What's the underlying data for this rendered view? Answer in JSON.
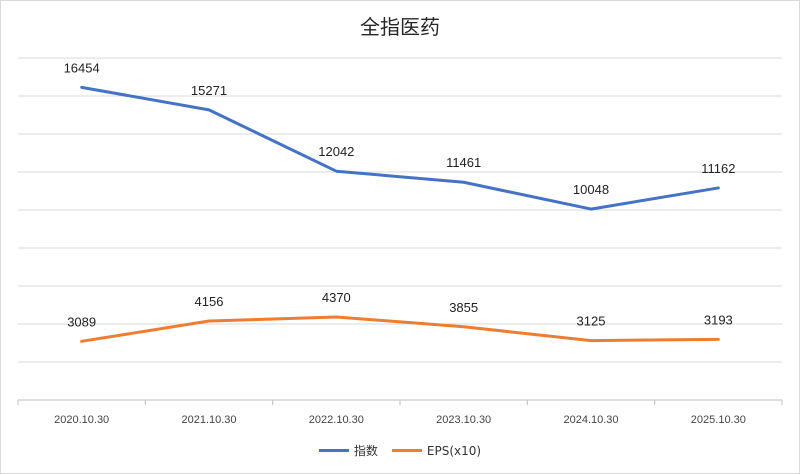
{
  "chart_data": {
    "type": "line",
    "title": "全指医药",
    "categories": [
      "2020.10.30",
      "2021.10.30",
      "2022.10.30",
      "2023.10.30",
      "2024.10.30",
      "2025.10.30"
    ],
    "series": [
      {
        "name": "指数",
        "color": "#4472C4",
        "values": [
          16454,
          15271,
          12042,
          11461,
          10048,
          11162
        ]
      },
      {
        "name": "EPS(x10)",
        "color": "#ED7D31",
        "values": [
          3089,
          4156,
          4370,
          3855,
          3125,
          3193
        ]
      }
    ],
    "ylim": [
      0,
      18000
    ],
    "grid": true,
    "legend": "bottom"
  }
}
